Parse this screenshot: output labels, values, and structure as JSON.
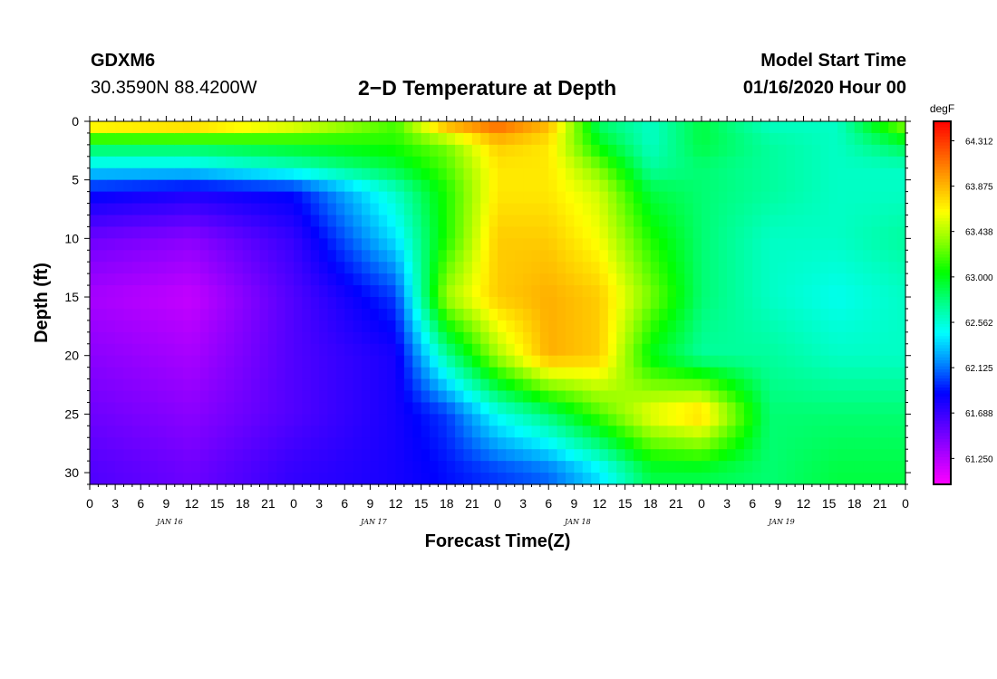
{
  "header": {
    "station": "GDXM6",
    "location": "30.3590N 88.4200W",
    "title": "2−D Temperature at Depth",
    "model_start_label": "Model Start Time",
    "model_start_value": "01/16/2020 Hour 00"
  },
  "chart_data": {
    "type": "heatmap",
    "title": "2−D Temperature at Depth",
    "xlabel": "Forecast Time(Z)",
    "ylabel": "Depth (ft)",
    "x_tick_labels": [
      "0",
      "3",
      "6",
      "9",
      "12",
      "15",
      "18",
      "21",
      "0",
      "3",
      "6",
      "9",
      "12",
      "15",
      "18",
      "21",
      "0",
      "3",
      "6",
      "9",
      "12",
      "15",
      "18",
      "21",
      "0",
      "3",
      "6",
      "9",
      "12",
      "15",
      "18",
      "21",
      "0"
    ],
    "date_labels": [
      {
        "label": "JAN 16",
        "hour": 9
      },
      {
        "label": "JAN 17",
        "hour": 33
      },
      {
        "label": "JAN 18",
        "hour": 57
      },
      {
        "label": "JAN 19",
        "hour": 81
      }
    ],
    "x_range_hours": [
      0,
      96
    ],
    "y_ticks": [
      0,
      5,
      10,
      15,
      20,
      25,
      30
    ],
    "y_range_ft": [
      0,
      31
    ],
    "y_reversed": true,
    "colorbar": {
      "unit": "degF",
      "tick_labels": [
        "64.312",
        "63.875",
        "63.438",
        "63.000",
        "62.562",
        "62.125",
        "61.688",
        "61.250"
      ],
      "range": [
        61.0,
        64.5
      ],
      "colors": [
        "#ff00ff",
        "#aa00ff",
        "#5500ff",
        "#0000ff",
        "#0088ff",
        "#00ffff",
        "#00ff88",
        "#00ff00",
        "#88ff00",
        "#ffff00",
        "#ffaa00",
        "#ff5500",
        "#ff0000"
      ]
    },
    "grid": false,
    "legend": "colorbar-right",
    "zones": {
      "surface_warm": {
        "t_start": 0,
        "t_end": 96,
        "depth_max": 1.5,
        "value": 63.9
      },
      "cold_deep": {
        "value": 61.3,
        "center_hour": 14,
        "center_depth": 17
      },
      "cold_boundary_depth_start": 5.5,
      "cold_boundary_hours": [
        [
          0,
          24
        ],
        [
          24,
          34
        ],
        [
          34,
          40
        ],
        [
          40,
          50
        ],
        [
          50,
          70
        ]
      ],
      "warm_core": {
        "value": 63.9,
        "hours": [
          40,
          72
        ],
        "depth_max": 29
      },
      "warm_blob": {
        "value": 63.8,
        "center_hour": 70,
        "center_depth": 27
      },
      "late_mild": {
        "value": 62.8,
        "hours": [
          70,
          96
        ]
      }
    },
    "time_depth_samples": [
      {
        "hour": 0,
        "depths": [
          0,
          2,
          4,
          6,
          10,
          15,
          20,
          25,
          30
        ],
        "values": [
          63.9,
          62.9,
          62.4,
          61.9,
          61.5,
          61.3,
          61.4,
          61.5,
          61.6
        ]
      },
      {
        "hour": 12,
        "depths": [
          0,
          2,
          4,
          6,
          10,
          15,
          20,
          25,
          30
        ],
        "values": [
          64.0,
          62.9,
          62.4,
          61.8,
          61.4,
          61.2,
          61.3,
          61.4,
          61.5
        ]
      },
      {
        "hour": 24,
        "depths": [
          0,
          2,
          4,
          6,
          10,
          15,
          20,
          25,
          30
        ],
        "values": [
          63.7,
          63.0,
          62.6,
          61.9,
          61.7,
          61.6,
          61.6,
          61.6,
          61.7
        ]
      },
      {
        "hour": 36,
        "depths": [
          0,
          2,
          4,
          6,
          10,
          15,
          20,
          25,
          30
        ],
        "values": [
          63.2,
          63.1,
          62.9,
          62.6,
          62.4,
          62.0,
          61.8,
          61.8,
          61.8
        ]
      },
      {
        "hour": 42,
        "depths": [
          0,
          2,
          4,
          6,
          10,
          15,
          20,
          25,
          30
        ],
        "values": [
          64.0,
          63.3,
          63.2,
          63.1,
          63.1,
          63.4,
          62.7,
          62.0,
          61.9
        ]
      },
      {
        "hour": 48,
        "depths": [
          0,
          2,
          4,
          6,
          10,
          15,
          20,
          25,
          30
        ],
        "values": [
          64.2,
          63.8,
          63.7,
          63.7,
          63.8,
          63.8,
          63.4,
          62.5,
          62.0
        ]
      },
      {
        "hour": 54,
        "depths": [
          0,
          2,
          4,
          6,
          10,
          15,
          20,
          25,
          30
        ],
        "values": [
          63.9,
          63.7,
          63.7,
          63.7,
          63.8,
          63.9,
          63.9,
          62.8,
          62.1
        ]
      },
      {
        "hour": 60,
        "depths": [
          0,
          2,
          4,
          6,
          10,
          15,
          20,
          25,
          30
        ],
        "values": [
          62.8,
          63.0,
          63.3,
          63.5,
          63.6,
          63.8,
          63.8,
          63.2,
          62.4
        ]
      },
      {
        "hour": 66,
        "depths": [
          0,
          2,
          4,
          6,
          10,
          15,
          20,
          25,
          30
        ],
        "values": [
          62.6,
          62.6,
          62.7,
          62.9,
          63.1,
          63.3,
          63.0,
          63.6,
          62.9
        ]
      },
      {
        "hour": 72,
        "depths": [
          0,
          2,
          4,
          6,
          10,
          15,
          20,
          25,
          30
        ],
        "values": [
          62.9,
          62.9,
          62.8,
          62.8,
          62.8,
          62.8,
          62.7,
          63.8,
          62.9
        ]
      },
      {
        "hour": 80,
        "depths": [
          0,
          2,
          4,
          6,
          10,
          15,
          20,
          25,
          30
        ],
        "values": [
          62.6,
          62.7,
          62.7,
          62.7,
          62.6,
          62.6,
          62.7,
          62.8,
          62.8
        ]
      },
      {
        "hour": 88,
        "depths": [
          0,
          2,
          4,
          6,
          10,
          15,
          20,
          25,
          30
        ],
        "values": [
          62.6,
          62.6,
          62.6,
          62.6,
          62.6,
          62.5,
          62.6,
          62.8,
          62.9
        ]
      },
      {
        "hour": 96,
        "depths": [
          0,
          2,
          4,
          6,
          10,
          15,
          20,
          25,
          30
        ],
        "values": [
          63.4,
          62.9,
          62.6,
          62.6,
          62.7,
          62.6,
          62.6,
          62.8,
          62.9
        ]
      }
    ]
  }
}
